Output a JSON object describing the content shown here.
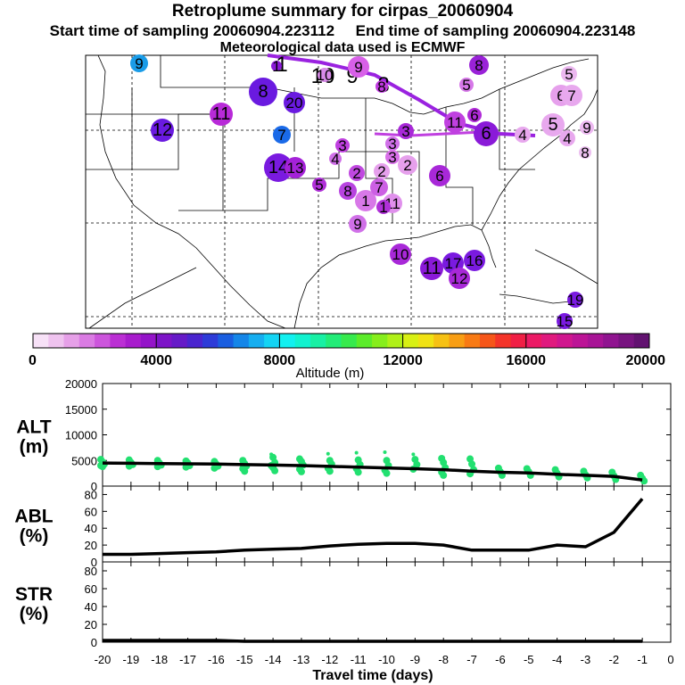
{
  "title": "Retroplume summary for cirpas_20060904",
  "subtitle_start": "Start time of sampling 20060904.223112",
  "subtitle_end": "End time of sampling 20060904.223148",
  "subtitle_met": "Meteorological data used is ECMWF",
  "colorbar": {
    "label": "Altitude (m)",
    "ticks": [
      "0",
      "4000",
      "8000",
      "12000",
      "16000",
      "20000"
    ],
    "colors": [
      "#f7e1f7",
      "#efc3ef",
      "#e6a0e8",
      "#da7be3",
      "#cc55dc",
      "#bb2fd4",
      "#a81ccd",
      "#9414c9",
      "#7d14c8",
      "#661ac8",
      "#4a25cf",
      "#2d3bd8",
      "#1a5ee0",
      "#1586e8",
      "#16aef0",
      "#14d4f4",
      "#12f0f0",
      "#12f2cf",
      "#18f0a4",
      "#22ec78",
      "#37ea4d",
      "#5cec2a",
      "#86ee1c",
      "#b0f018",
      "#d8f014",
      "#f0e214",
      "#f6c114",
      "#f89e14",
      "#f87a14",
      "#f65619",
      "#f43429",
      "#f01f45",
      "#ec1a65",
      "#e01a7e",
      "#d0168e",
      "#bc1496",
      "#a81496",
      "#901490",
      "#781480",
      "#621270"
    ]
  },
  "map": {
    "points": [
      {
        "label": "9",
        "color": "#1a9ce8"
      },
      {
        "label": "8",
        "color": "#6a1ae0"
      },
      {
        "label": "20",
        "color": "#6a1ae0"
      },
      {
        "label": "11",
        "color": "#b82ad8"
      },
      {
        "label": "12",
        "color": "#6a1ae0"
      },
      {
        "label": "7",
        "color": "#1a6ae8"
      },
      {
        "label": "14",
        "color": "#7a1ae0"
      },
      {
        "label": "13",
        "color": "#a422d8"
      },
      {
        "label": "1",
        "color": "#8a1ad8"
      },
      {
        "label": "10",
        "color": "#d88ae8"
      },
      {
        "label": "9",
        "color": "#d860e8"
      },
      {
        "label": "8",
        "color": "#c03ae0"
      },
      {
        "label": "3",
        "color": "#c040e0"
      },
      {
        "label": "4",
        "color": "#d070e8"
      },
      {
        "label": "2",
        "color": "#c048e0"
      },
      {
        "label": "2",
        "color": "#e6a0ec"
      },
      {
        "label": "3",
        "color": "#d070e8"
      },
      {
        "label": "6",
        "color": "#a828d8"
      },
      {
        "label": "5",
        "color": "#b030d8"
      },
      {
        "label": "8",
        "color": "#b844e0"
      },
      {
        "label": "1",
        "color": "#d878e8"
      },
      {
        "label": "7",
        "color": "#cc60e4"
      },
      {
        "label": "11",
        "color": "#e090ec"
      },
      {
        "label": "9",
        "color": "#d070e8"
      },
      {
        "label": "6",
        "color": "#b02ad8"
      },
      {
        "label": "3",
        "color": "#a828d8"
      },
      {
        "label": "2",
        "color": "#e6a0ec"
      },
      {
        "label": "3",
        "color": "#d870e8"
      },
      {
        "label": "1",
        "color": "#b030d8"
      },
      {
        "label": "8",
        "color": "#9a22d8"
      },
      {
        "label": "5",
        "color": "#d678e8"
      },
      {
        "label": "4",
        "color": "#e8a8ee"
      },
      {
        "label": "5",
        "color": "#e8a8ee"
      },
      {
        "label": "4",
        "color": "#e8a8ee"
      },
      {
        "label": "9",
        "color": "#ecb8f0"
      },
      {
        "label": "8",
        "color": "#ecc0f0"
      },
      {
        "label": "6",
        "color": "#e6a0ec"
      },
      {
        "label": "7",
        "color": "#e8a8ee"
      },
      {
        "label": "5",
        "color": "#ecb8f0"
      },
      {
        "label": "11",
        "color": "#c040e0"
      },
      {
        "label": "6",
        "color": "#8a1ad8"
      },
      {
        "label": "10",
        "color": "#a828d8"
      },
      {
        "label": "11",
        "color": "#8a1ad8"
      },
      {
        "label": "17",
        "color": "#7a1ae0"
      },
      {
        "label": "16",
        "color": "#7a1ae0"
      },
      {
        "label": "12",
        "color": "#a828d8"
      },
      {
        "label": "19",
        "color": "#7a1ae0"
      },
      {
        "label": "15",
        "color": "#7a1ae0"
      }
    ],
    "trajectory_labels": [
      "1",
      "10",
      "9",
      "8"
    ]
  },
  "chart_data": [
    {
      "type": "scatter",
      "title": "ALT (m)",
      "label_line1": "ALT",
      "label_line2": "(m)",
      "x": [
        -20,
        -19,
        -18,
        -17,
        -16,
        -15,
        -14,
        -13,
        -12,
        -11,
        -10,
        -9,
        -8,
        -7,
        -6,
        -5,
        -4,
        -3,
        -2,
        -1
      ],
      "line_values": [
        4500,
        4450,
        4400,
        4350,
        4300,
        4200,
        4100,
        4000,
        3850,
        3700,
        3550,
        3400,
        3200,
        2900,
        2700,
        2550,
        2300,
        2100,
        1900,
        1200
      ],
      "scatter_series": [
        {
          "name": "plume points",
          "values": [
            [
              5200,
              4700,
              4300,
              4000,
              3800
            ],
            [
              5100,
              4600,
              4200,
              3900
            ],
            [
              5000,
              4500,
              4100,
              3800
            ],
            [
              4900,
              4500,
              4000,
              3700
            ],
            [
              4800,
              4300,
              3900,
              3500
            ],
            [
              5000,
              4400,
              3900,
              3400,
              2900
            ],
            [
              6200,
              5600,
              4600,
              4000,
              3600,
              3000
            ],
            [
              5300,
              4800,
              4100,
              3300,
              2800
            ],
            [
              6300,
              5000,
              4300,
              3500,
              2900
            ],
            [
              6500,
              5100,
              4200,
              3400,
              2700
            ],
            [
              6600,
              5000,
              4000,
              3100,
              2500
            ],
            [
              6200,
              5200,
              4200,
              3300
            ],
            [
              5400,
              4600,
              3600,
              2700,
              2100
            ],
            [
              5300,
              4300,
              3200,
              2400
            ],
            [
              3500,
              2800,
              2100
            ],
            [
              3400,
              2800,
              2100
            ],
            [
              3200,
              2500,
              1800
            ],
            [
              2900,
              2200,
              1600
            ],
            [
              2700,
              2000,
              1300
            ],
            [
              2100,
              1500,
              1000
            ]
          ]
        }
      ],
      "ylim": [
        0,
        20000
      ],
      "yticks": [
        "0",
        "5000",
        "10000",
        "15000",
        "20000"
      ]
    },
    {
      "type": "line",
      "title": "ABL (%)",
      "label_line1": "ABL",
      "label_line2": "(%)",
      "x": [
        -20,
        -19,
        -18,
        -17,
        -16,
        -15,
        -14,
        -13,
        -12,
        -11,
        -10,
        -9,
        -8,
        -7,
        -6,
        -5,
        -4,
        -3,
        -2,
        -1
      ],
      "values": [
        9,
        9,
        10,
        11,
        12,
        14,
        15,
        16,
        19,
        21,
        22,
        22,
        20,
        14,
        14,
        14,
        20,
        18,
        35,
        75
      ],
      "ylim": [
        0,
        90
      ],
      "yticks": [
        "0",
        "20",
        "40",
        "60",
        "80"
      ]
    },
    {
      "type": "line",
      "title": "STR (%)",
      "label_line1": "STR",
      "label_line2": "(%)",
      "x": [
        -20,
        -19,
        -18,
        -17,
        -16,
        -15,
        -14,
        -13,
        -12,
        -11,
        -10,
        -9,
        -8,
        -7,
        -6,
        -5,
        -4,
        -3,
        -2,
        -1
      ],
      "values": [
        2,
        2,
        2,
        2,
        2,
        1,
        1,
        1,
        1,
        1,
        1,
        1,
        1,
        1,
        1,
        1,
        1,
        1,
        1,
        1
      ],
      "ylim": [
        0,
        90
      ],
      "yticks": [
        "0",
        "20",
        "40",
        "60",
        "80"
      ]
    }
  ],
  "xaxis": {
    "label": "Travel time (days)",
    "ticks": [
      "-20",
      "-19",
      "-18",
      "-17",
      "-16",
      "-15",
      "-14",
      "-13",
      "-12",
      "-11",
      "-10",
      "-9",
      "-8",
      "-7",
      "-6",
      "-5",
      "-4",
      "-3",
      "-2",
      "-1",
      "0"
    ]
  }
}
